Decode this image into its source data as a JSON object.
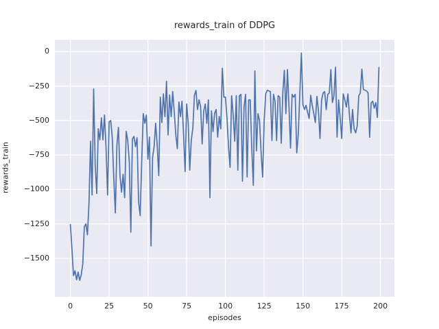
{
  "figure": {
    "title": "rewards_train of DDPG",
    "xlabel": "episodes",
    "ylabel": "rewards_train"
  },
  "chart_data": {
    "type": "line",
    "title": "rewards_train of DDPG",
    "xlabel": "episodes",
    "ylabel": "rewards_train",
    "style": "seaborn-darkgrid",
    "grid": true,
    "legend": "none",
    "plot_bg_color": "#EAEAF2",
    "grid_color": "#FFFFFF",
    "line_color": "#4C72B0",
    "text_color": "#262626",
    "xlim": [
      -10,
      209
    ],
    "ylim": [
      -1779,
      86
    ],
    "xticks": [
      0,
      25,
      50,
      75,
      100,
      125,
      150,
      175,
      200
    ],
    "yticks": [
      0,
      -250,
      -500,
      -750,
      -1000,
      -1250,
      -1500
    ],
    "xtick_labels": [
      "0",
      "25",
      "50",
      "75",
      "100",
      "125",
      "150",
      "175",
      "200"
    ],
    "ytick_labels": [
      "0",
      "−250",
      "−500",
      "−750",
      "−1000",
      "−1250",
      "−1500"
    ],
    "series": [
      {
        "name": "rewards_train",
        "x_start": 0,
        "x_step": 1,
        "values": [
          -1255,
          -1430,
          -1625,
          -1590,
          -1655,
          -1600,
          -1660,
          -1620,
          -1540,
          -1270,
          -1250,
          -1330,
          -1100,
          -650,
          -1040,
          -270,
          -820,
          -1030,
          -560,
          -640,
          -480,
          -640,
          -460,
          -700,
          -1040,
          -510,
          -500,
          -620,
          -920,
          -1170,
          -680,
          -550,
          -900,
          -1020,
          -890,
          -1060,
          -580,
          -645,
          -800,
          -1310,
          -635,
          -615,
          -690,
          -625,
          -1090,
          -1190,
          -800,
          -450,
          -520,
          -460,
          -780,
          -620,
          -1410,
          -770,
          -690,
          -520,
          -680,
          -900,
          -330,
          -515,
          -307,
          -472,
          -215,
          -605,
          -315,
          -472,
          -290,
          -440,
          -605,
          -704,
          -365,
          -472,
          -360,
          -600,
          -870,
          -380,
          -520,
          -860,
          -640,
          -555,
          -317,
          -282,
          -420,
          -350,
          -400,
          -670,
          -430,
          -380,
          -520,
          -350,
          -1060,
          -430,
          -580,
          -450,
          -420,
          -620,
          -470,
          -560,
          -120,
          -330,
          -330,
          -480,
          -690,
          -840,
          -320,
          -460,
          -650,
          -320,
          -860,
          -320,
          -310,
          -940,
          -400,
          -310,
          -910,
          -350,
          -350,
          -700,
          -970,
          -140,
          -720,
          -450,
          -500,
          -730,
          -910,
          -500,
          -305,
          -280,
          -285,
          -290,
          -645,
          -310,
          -360,
          -645,
          -320,
          -330,
          -665,
          -300,
          -135,
          -450,
          -130,
          -400,
          -700,
          -310,
          -330,
          -310,
          -735,
          -600,
          -300,
          -10,
          -385,
          -420,
          -390,
          -440,
          -485,
          -317,
          -390,
          -450,
          -515,
          -325,
          -430,
          -630,
          -355,
          -300,
          -290,
          -420,
          -310,
          -300,
          -130,
          -370,
          -320,
          -113,
          -620,
          -350,
          -480,
          -630,
          -307,
          -350,
          -402,
          -307,
          -460,
          -590,
          -420,
          -560,
          -590,
          -540,
          -320,
          -300,
          -127,
          -275,
          -280,
          -285,
          -300,
          -622,
          -372,
          -360,
          -410,
          -370,
          -478,
          -115
        ]
      }
    ]
  }
}
